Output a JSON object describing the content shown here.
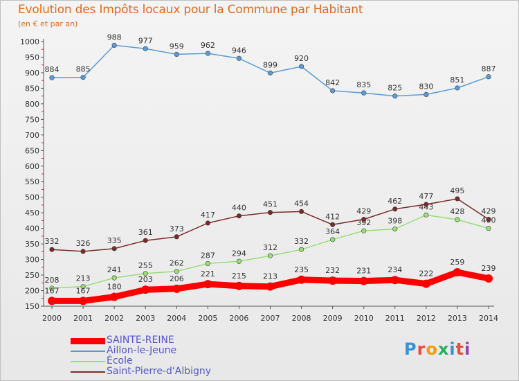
{
  "title": "Evolution des Impôts locaux pour la Commune par Habitant",
  "subtitle": "(en € et par an)",
  "logo_text": "Proxiti",
  "chart_data": {
    "type": "line",
    "title": "Evolution des Impôts locaux pour la Commune par Habitant",
    "subtitle": "(en € et par an)",
    "xlabel": "",
    "ylabel": "",
    "x": [
      "2000",
      "2001",
      "2002",
      "2003",
      "2004",
      "2005",
      "2006",
      "2007",
      "2008",
      "2009",
      "2010",
      "2011",
      "2012",
      "2013",
      "2014"
    ],
    "ylim": [
      150,
      1000
    ],
    "yticks": [
      150,
      200,
      250,
      300,
      350,
      400,
      450,
      500,
      550,
      600,
      650,
      700,
      750,
      800,
      850,
      900,
      950,
      1000
    ],
    "grid": false,
    "legend_position": "bottom-left",
    "series": [
      {
        "name": "SAINTE-REINE",
        "color": "#ff0000",
        "values": [
          167,
          167,
          180,
          203,
          206,
          221,
          215,
          213,
          235,
          232,
          231,
          234,
          222,
          259,
          239
        ]
      },
      {
        "name": "Aillon-le-Jeune",
        "color": "#5b9bd5",
        "values": [
          884,
          885,
          988,
          977,
          959,
          962,
          946,
          899,
          920,
          842,
          835,
          825,
          830,
          851,
          887
        ]
      },
      {
        "name": "École",
        "color": "#99dd77",
        "values": [
          208,
          213,
          241,
          255,
          262,
          287,
          294,
          312,
          332,
          364,
          392,
          398,
          443,
          428,
          400
        ]
      },
      {
        "name": "Saint-Pierre-d'Albigny",
        "color": "#7a2a2a",
        "values": [
          332,
          326,
          335,
          361,
          373,
          417,
          440,
          451,
          454,
          412,
          429,
          462,
          477,
          495,
          429
        ]
      }
    ]
  },
  "colors": {
    "title": "#e26a1c",
    "axis": "#555555",
    "tick_mark_red": "#dd2222",
    "legend_text": "#5555cc"
  }
}
